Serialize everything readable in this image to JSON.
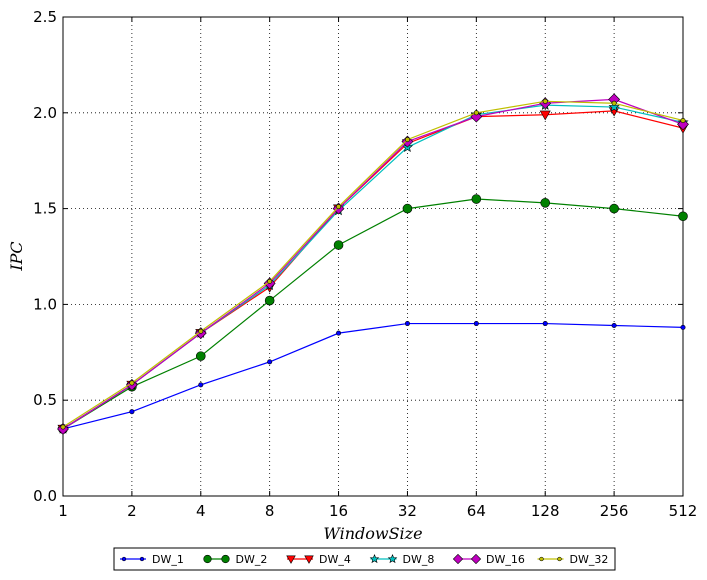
{
  "chart_data": {
    "type": "line",
    "xlabel": "WindowSize",
    "ylabel": "IPC",
    "x": [
      "1",
      "2",
      "4",
      "8",
      "16",
      "32",
      "64",
      "128",
      "256",
      "512"
    ],
    "x_scale": "log2",
    "ylim": [
      0,
      2.5
    ],
    "y_ticks": [
      "0.0",
      "0.5",
      "1.0",
      "1.5",
      "2.0",
      "2.5"
    ],
    "grid": true,
    "legend_position": "bottom-center",
    "series": [
      {
        "name": "DW_1",
        "color": "#0000ff",
        "marker": "dot",
        "values": [
          0.35,
          0.44,
          0.58,
          0.7,
          0.85,
          0.9,
          0.9,
          0.9,
          0.89,
          0.88
        ]
      },
      {
        "name": "DW_2",
        "color": "#008000",
        "marker": "circle",
        "values": [
          0.35,
          0.57,
          0.73,
          1.02,
          1.31,
          1.5,
          1.55,
          1.53,
          1.5,
          1.46
        ]
      },
      {
        "name": "DW_4",
        "color": "#ff0000",
        "marker": "triangle-down",
        "values": [
          0.35,
          0.58,
          0.85,
          1.09,
          1.5,
          1.84,
          1.98,
          1.99,
          2.01,
          1.92
        ]
      },
      {
        "name": "DW_8",
        "color": "#00bfbf",
        "marker": "star",
        "values": [
          0.35,
          0.58,
          0.85,
          1.1,
          1.49,
          1.82,
          1.99,
          2.04,
          2.03,
          1.95
        ]
      },
      {
        "name": "DW_16",
        "color": "#bf00bf",
        "marker": "diamond",
        "values": [
          0.35,
          0.58,
          0.85,
          1.11,
          1.5,
          1.85,
          1.98,
          2.05,
          2.07,
          1.94
        ]
      },
      {
        "name": "DW_32",
        "color": "#bfbf00",
        "marker": "dot",
        "values": [
          0.36,
          0.59,
          0.86,
          1.12,
          1.51,
          1.86,
          2.0,
          2.06,
          2.05,
          1.96
        ]
      }
    ]
  }
}
